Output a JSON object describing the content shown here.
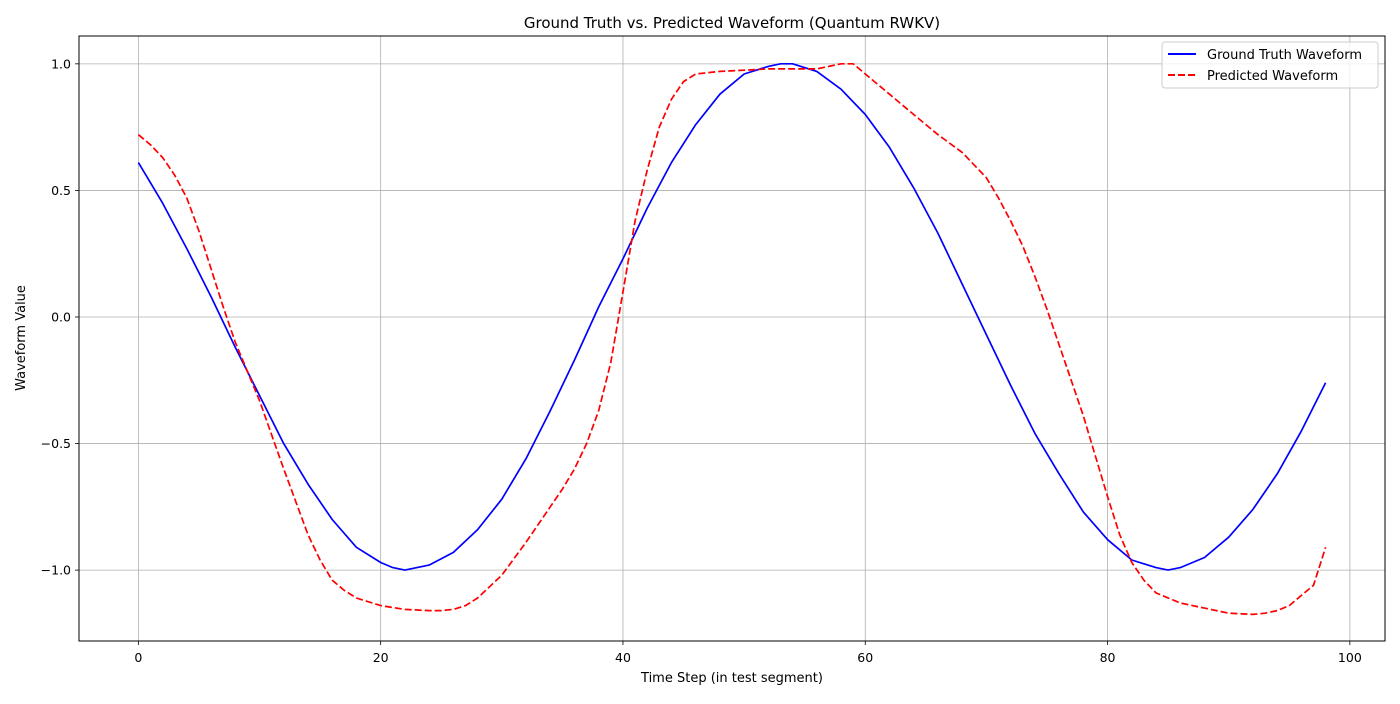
{
  "chart_data": {
    "type": "line",
    "title": "Ground Truth vs. Predicted Waveform (Quantum RWKV)",
    "xlabel": "Time Step (in test segment)",
    "ylabel": "Waveform Value",
    "xlim": [
      -4.9,
      102.9
    ],
    "ylim": [
      -1.28,
      1.11
    ],
    "xticks": [
      0,
      20,
      40,
      60,
      80,
      100
    ],
    "xtick_labels": [
      "0",
      "20",
      "40",
      "60",
      "80",
      "100"
    ],
    "yticks": [
      -1.0,
      -0.5,
      0.0,
      0.5,
      1.0
    ],
    "ytick_labels": [
      "−1.0",
      "−0.5",
      "0.0",
      "0.5",
      "1.0"
    ],
    "grid": true,
    "legend_position": "top-right",
    "series": [
      {
        "name": "Ground Truth Waveform",
        "color": "#0000ff",
        "style": "solid",
        "x": [
          0,
          2,
          4,
          6,
          8,
          10,
          12,
          14,
          16,
          18,
          20,
          21,
          22,
          23,
          24,
          26,
          28,
          30,
          32,
          34,
          36,
          38,
          40,
          42,
          44,
          46,
          48,
          50,
          52,
          53,
          54,
          56,
          58,
          60,
          62,
          64,
          66,
          68,
          70,
          72,
          74,
          76,
          78,
          80,
          82,
          84,
          85,
          86,
          88,
          90,
          92,
          94,
          96,
          98
        ],
        "y": [
          0.61,
          0.45,
          0.27,
          0.08,
          -0.12,
          -0.31,
          -0.5,
          -0.66,
          -0.8,
          -0.91,
          -0.97,
          -0.99,
          -1.0,
          -0.99,
          -0.98,
          -0.93,
          -0.84,
          -0.72,
          -0.56,
          -0.37,
          -0.17,
          0.04,
          0.23,
          0.43,
          0.61,
          0.76,
          0.88,
          0.96,
          0.99,
          1.0,
          1.0,
          0.97,
          0.9,
          0.8,
          0.67,
          0.51,
          0.33,
          0.13,
          -0.07,
          -0.27,
          -0.46,
          -0.62,
          -0.77,
          -0.88,
          -0.96,
          -0.99,
          -1.0,
          -0.99,
          -0.95,
          -0.87,
          -0.76,
          -0.62,
          -0.45,
          -0.26
        ]
      },
      {
        "name": "Predicted Waveform",
        "color": "#ff0000",
        "style": "dashed",
        "x": [
          0,
          1,
          2,
          3,
          4,
          5,
          6,
          7,
          8,
          10,
          12,
          14,
          15,
          16,
          17,
          18,
          20,
          22,
          24,
          25,
          26,
          27,
          28,
          30,
          32,
          34,
          35,
          36,
          37,
          38,
          39,
          40,
          41,
          42,
          43,
          44,
          45,
          46,
          48,
          50,
          52,
          54,
          56,
          58,
          59,
          60,
          62,
          64,
          66,
          68,
          70,
          71,
          72,
          73,
          74,
          75,
          76,
          78,
          80,
          81,
          82,
          83,
          84,
          86,
          88,
          90,
          92,
          93,
          94,
          95,
          96,
          97,
          98
        ],
        "y": [
          0.72,
          0.68,
          0.63,
          0.56,
          0.47,
          0.34,
          0.19,
          0.04,
          -0.1,
          -0.33,
          -0.6,
          -0.86,
          -0.96,
          -1.04,
          -1.08,
          -1.11,
          -1.14,
          -1.155,
          -1.16,
          -1.16,
          -1.155,
          -1.14,
          -1.11,
          -1.02,
          -0.89,
          -0.75,
          -0.68,
          -0.6,
          -0.5,
          -0.37,
          -0.18,
          0.1,
          0.38,
          0.58,
          0.75,
          0.86,
          0.93,
          0.96,
          0.97,
          0.975,
          0.98,
          0.98,
          0.98,
          1.0,
          1.0,
          0.96,
          0.88,
          0.8,
          0.72,
          0.65,
          0.55,
          0.47,
          0.38,
          0.28,
          0.16,
          0.03,
          -0.11,
          -0.39,
          -0.71,
          -0.86,
          -0.97,
          -1.04,
          -1.09,
          -1.13,
          -1.15,
          -1.17,
          -1.175,
          -1.17,
          -1.16,
          -1.14,
          -1.1,
          -1.06,
          -0.91
        ]
      }
    ]
  }
}
